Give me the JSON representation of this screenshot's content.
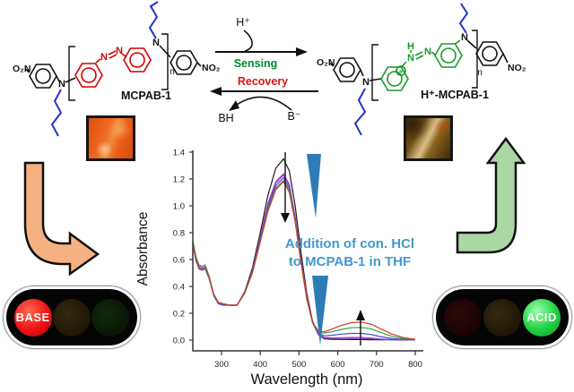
{
  "structures": {
    "left": {
      "label": "MCPAB-1",
      "o2n": "O₂N",
      "no2": "NO₂",
      "n_sub": "n",
      "amine_n": "N",
      "top_n": "N",
      "azo_n1": "N",
      "azo_n2": "N"
    },
    "right": {
      "label": "H⁺-MCPAB-1",
      "o2n": "O₂N",
      "no2": "NO₂",
      "n_sub": "n",
      "amine_n": "N",
      "top_n": "N",
      "nh_h": "H",
      "nh_n": "N",
      "plus": "+",
      "azo_n2": "N"
    }
  },
  "reaction": {
    "proton": "H⁺",
    "forward_label": "Sensing",
    "reverse_label": "Recovery",
    "conjugate_acid": "BH",
    "base": "B⁻",
    "forward_color": "#008a2e",
    "reverse_color": "#e01212"
  },
  "traffic_lights": {
    "left": {
      "label": "BASE",
      "lit": "red"
    },
    "right": {
      "label": "ACID",
      "lit": "green"
    }
  },
  "colors": {
    "annotation_blue": "#4398d0",
    "wedge_blue": "#2d7cb5",
    "orange_arrow": "#f6b183",
    "green_arrow": "#a9d8a2",
    "red_azo": "#d40000",
    "green_azo": "#189a28",
    "butyl_blue": "#2433cc",
    "lit_red": "#ee1212",
    "lit_green": "#23d344",
    "film_orange": "#e4571a",
    "film_brown": "#6b4a12"
  },
  "chart_data": {
    "type": "line",
    "title": "",
    "xlabel": "Wavelength (nm)",
    "ylabel": "Absorbance",
    "xlim": [
      226,
      800
    ],
    "ylim": [
      0,
      1.4
    ],
    "x_ticks": [
      300,
      400,
      500,
      600,
      700,
      800
    ],
    "y_ticks": [
      0,
      0.2,
      0.4,
      0.6,
      0.8,
      1.0,
      1.2,
      1.4
    ],
    "grid": false,
    "legend": false,
    "annotation_lines": [
      "Addition of con. HCl",
      "to MCPAB-1 in THF"
    ],
    "trend_arrows": [
      {
        "at_nm": 460,
        "direction": "down"
      },
      {
        "at_nm": 650,
        "direction": "up"
      }
    ],
    "x": [
      226,
      234,
      242,
      250,
      258,
      268,
      280,
      292,
      305,
      320,
      340,
      360,
      380,
      400,
      420,
      440,
      460,
      475,
      490,
      505,
      520,
      535,
      550,
      565,
      585,
      610,
      635,
      660,
      685,
      710,
      740,
      770,
      800
    ],
    "series": [
      {
        "name": "initial (black)",
        "color": "#1a1a1a",
        "values": [
          0.72,
          0.6,
          0.54,
          0.53,
          0.54,
          0.47,
          0.34,
          0.28,
          0.27,
          0.26,
          0.26,
          0.36,
          0.54,
          0.8,
          1.08,
          1.28,
          1.35,
          1.26,
          1.0,
          0.66,
          0.35,
          0.14,
          0.04,
          0.01,
          0.006,
          0.005,
          0.004,
          0.004,
          0.003,
          0.003,
          0.002,
          0.001,
          0.001
        ]
      },
      {
        "name": "HCl step 1 (magenta)",
        "color": "#d63fd6",
        "values": [
          0.73,
          0.61,
          0.55,
          0.54,
          0.55,
          0.47,
          0.34,
          0.28,
          0.27,
          0.26,
          0.26,
          0.35,
          0.52,
          0.77,
          1.02,
          1.18,
          1.24,
          1.16,
          0.92,
          0.61,
          0.33,
          0.13,
          0.045,
          0.02,
          0.016,
          0.018,
          0.02,
          0.02,
          0.016,
          0.009,
          0.004,
          0.002,
          0.001
        ]
      },
      {
        "name": "HCl step 2 (purple)",
        "color": "#8040c0",
        "values": [
          0.72,
          0.6,
          0.54,
          0.53,
          0.54,
          0.46,
          0.34,
          0.28,
          0.27,
          0.26,
          0.26,
          0.35,
          0.52,
          0.76,
          1.01,
          1.17,
          1.23,
          1.15,
          0.91,
          0.6,
          0.32,
          0.13,
          0.04,
          0.016,
          0.012,
          0.012,
          0.013,
          0.012,
          0.01,
          0.006,
          0.003,
          0.002,
          0.001
        ]
      },
      {
        "name": "HCl step 3 (blue)",
        "color": "#3a50c8",
        "values": [
          0.71,
          0.59,
          0.53,
          0.52,
          0.53,
          0.46,
          0.33,
          0.27,
          0.26,
          0.26,
          0.26,
          0.35,
          0.51,
          0.75,
          0.99,
          1.15,
          1.21,
          1.13,
          0.9,
          0.6,
          0.32,
          0.13,
          0.05,
          0.032,
          0.036,
          0.045,
          0.05,
          0.05,
          0.042,
          0.026,
          0.012,
          0.005,
          0.002
        ]
      },
      {
        "name": "HCl step 4 (green)",
        "color": "#2ca04e",
        "values": [
          0.74,
          0.62,
          0.56,
          0.55,
          0.56,
          0.48,
          0.34,
          0.28,
          0.27,
          0.26,
          0.26,
          0.35,
          0.51,
          0.74,
          0.97,
          1.13,
          1.19,
          1.11,
          0.89,
          0.59,
          0.31,
          0.13,
          0.06,
          0.052,
          0.062,
          0.08,
          0.092,
          0.095,
          0.085,
          0.058,
          0.028,
          0.011,
          0.004
        ]
      },
      {
        "name": "HCl step 5 (red)",
        "color": "#d43c28",
        "values": [
          0.72,
          0.6,
          0.54,
          0.53,
          0.54,
          0.47,
          0.34,
          0.28,
          0.27,
          0.26,
          0.26,
          0.35,
          0.5,
          0.73,
          0.96,
          1.12,
          1.18,
          1.1,
          0.88,
          0.58,
          0.31,
          0.13,
          0.07,
          0.062,
          0.082,
          0.11,
          0.13,
          0.135,
          0.12,
          0.085,
          0.045,
          0.018,
          0.006
        ]
      }
    ]
  }
}
